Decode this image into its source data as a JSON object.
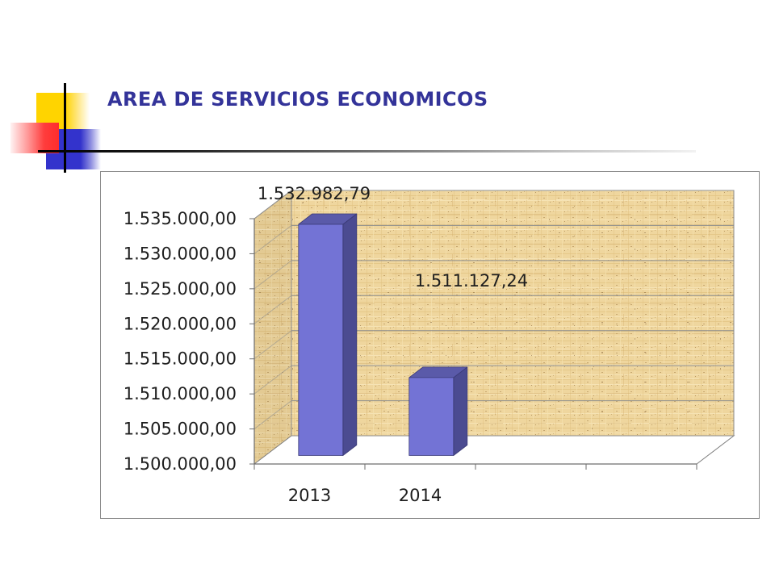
{
  "slide": {
    "title": "AREA DE SERVICIOS ECONOMICOS",
    "title_color": "#333399"
  },
  "chart_data": {
    "type": "bar",
    "3d": true,
    "categories": [
      "2013",
      "2014"
    ],
    "values": [
      1532982.79,
      1511127.24
    ],
    "data_labels": [
      "1.532.982,79",
      "1.511.127,24"
    ],
    "ylim": [
      1500000,
      1535000
    ],
    "ytick_step": 5000,
    "yticks": [
      "1.500.000,00",
      "1.505.000,00",
      "1.510.000,00",
      "1.515.000,00",
      "1.520.000,00",
      "1.525.000,00",
      "1.530.000,00",
      "1.535.000,00"
    ],
    "grid": true,
    "bar_color": "#7373d5",
    "bar_side_color": "#4b4b91",
    "bar_top_color": "#5a5aa9",
    "wall_color": "#efd69e"
  }
}
